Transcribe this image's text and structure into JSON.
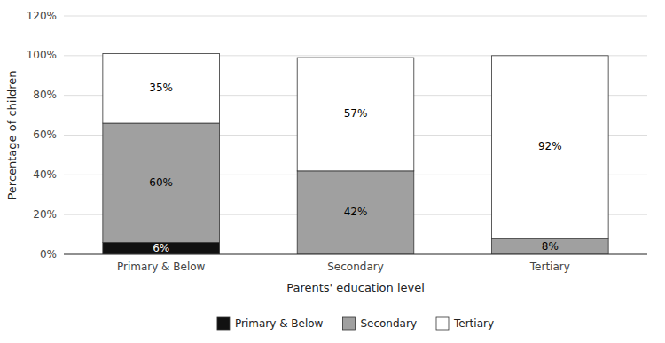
{
  "chart_data": {
    "type": "bar",
    "stacked": true,
    "xlabel": "Parents' education level",
    "ylabel": "Percentage of children",
    "categories": [
      "Primary & Below",
      "Secondary",
      "Tertiary"
    ],
    "series": [
      {
        "name": "Primary & Below",
        "color": "#111111",
        "values": [
          6,
          0,
          0
        ],
        "value_labels": [
          "6%",
          null,
          null
        ]
      },
      {
        "name": "Secondary",
        "color": "#a0a0a0",
        "values": [
          60,
          42,
          8
        ],
        "value_labels": [
          "60%",
          "42%",
          "8%"
        ]
      },
      {
        "name": "Tertiary",
        "color": "#ffffff",
        "values": [
          35,
          57,
          92
        ],
        "value_labels": [
          "35%",
          "57%",
          "92%"
        ]
      }
    ],
    "ylim": [
      0,
      120
    ],
    "yticks": [
      {
        "value": 0,
        "label": "0%"
      },
      {
        "value": 20,
        "label": "20%"
      },
      {
        "value": 40,
        "label": "40%"
      },
      {
        "value": 60,
        "label": "60%"
      },
      {
        "value": 80,
        "label": "80%"
      },
      {
        "value": 100,
        "label": "100%"
      },
      {
        "value": 120,
        "label": "120%"
      }
    ],
    "grid": true,
    "legend": "bottom",
    "data_labels": true
  }
}
